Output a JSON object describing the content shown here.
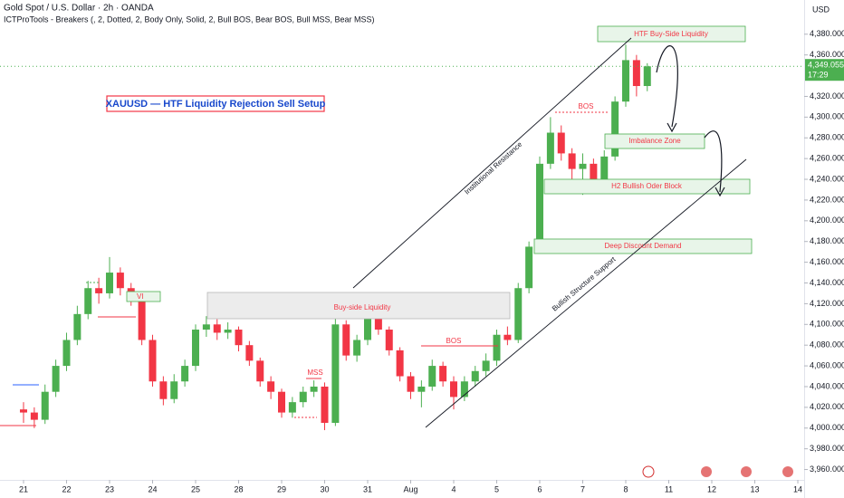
{
  "chart_data": {
    "type": "candlestick",
    "header": "Gold Spot / U.S. Dollar · 2h · OANDA",
    "indicator": "ICTProTools - Breakers (, 2, Dotted, 2, Body Only, Solid, 2, Bull BOS, Bear BOS, Bull MSS, Bear MSS)",
    "currency": "USD",
    "title": "XAUUSD — HTF Liquidity Rejection Sell Setup",
    "annotations": {
      "htf_buy_side": "HTF Buy-Side Liquidity",
      "imbalance": "Imbalance Zone",
      "order_block": "H2 Bullish Oder Block",
      "deep_discount": "Deep Discount Demand",
      "buy_side": "Buy-side Liquidity",
      "vi": "VI",
      "bos_1": "BOS",
      "bos_2": "BOS",
      "mss": "MSS",
      "resistance": "Institutional Resistance",
      "support": "Bullish Structure Support"
    },
    "last_price": {
      "value": 4349.055,
      "label": "4,349.055"
    },
    "countdown": "17:29",
    "up_color": "#4caf50",
    "down_color": "#f23645",
    "grid": false,
    "xlim": [
      -0.547,
      18.147
    ],
    "ylim": [
      3950,
      4413
    ],
    "xticks": [
      {
        "value": 0,
        "label": "21"
      },
      {
        "value": 1,
        "label": "22"
      },
      {
        "value": 2,
        "label": "23"
      },
      {
        "value": 3,
        "label": "24"
      },
      {
        "value": 4,
        "label": "25"
      },
      {
        "value": 5,
        "label": "28"
      },
      {
        "value": 6,
        "label": "29"
      },
      {
        "value": 7,
        "label": "30"
      },
      {
        "value": 8,
        "label": "31"
      },
      {
        "value": 9,
        "label": "Aug"
      },
      {
        "value": 10,
        "label": "4"
      },
      {
        "value": 11,
        "label": "5"
      },
      {
        "value": 12,
        "label": "6"
      },
      {
        "value": 13,
        "label": "7"
      },
      {
        "value": 14,
        "label": "8"
      },
      {
        "value": 15,
        "label": "11"
      },
      {
        "value": 16,
        "label": "12"
      },
      {
        "value": 17,
        "label": "13"
      },
      {
        "value": 18,
        "label": "14"
      }
    ],
    "yticks": [
      {
        "value": 3960,
        "label": "3,960.000"
      },
      {
        "value": 3980,
        "label": "3,980.000"
      },
      {
        "value": 4000,
        "label": "4,000.000"
      },
      {
        "value": 4020,
        "label": "4,020.000"
      },
      {
        "value": 4040,
        "label": "4,040.000"
      },
      {
        "value": 4060,
        "label": "4,060.000"
      },
      {
        "value": 4080,
        "label": "4,080.000"
      },
      {
        "value": 4100,
        "label": "4,100.000"
      },
      {
        "value": 4120,
        "label": "4,120.000"
      },
      {
        "value": 4140,
        "label": "4,140.000"
      },
      {
        "value": 4160,
        "label": "4,160.000"
      },
      {
        "value": 4180,
        "label": "4,180.000"
      },
      {
        "value": 4200,
        "label": "4,200.000"
      },
      {
        "value": 4220,
        "label": "4,220.000"
      },
      {
        "value": 4240,
        "label": "4,240.000"
      },
      {
        "value": 4260,
        "label": "4,260.000"
      },
      {
        "value": 4280,
        "label": "4,280.000"
      },
      {
        "value": 4300,
        "label": "4,300.000"
      },
      {
        "value": 4320,
        "label": "4,320.000"
      },
      {
        "value": 4360,
        "label": "4,360.000"
      },
      {
        "value": 4380,
        "label": "4,380.000"
      }
    ],
    "candles": {
      "x": [
        0,
        0.25,
        0.5,
        0.75,
        1,
        1.25,
        1.5,
        1.75,
        2,
        2.25,
        2.5,
        2.75,
        3,
        3.25,
        3.5,
        3.75,
        4,
        4.25,
        4.5,
        4.75,
        5,
        5.25,
        5.5,
        5.75,
        6,
        6.25,
        6.5,
        6.75,
        7,
        7.25,
        7.5,
        7.75,
        8,
        8.25,
        8.5,
        8.75,
        9,
        9.25,
        9.5,
        9.75,
        10,
        10.25,
        10.5,
        10.75,
        11,
        11.25,
        11.5,
        11.75,
        12,
        12.25,
        12.5,
        12.75,
        13,
        13.25,
        13.5,
        13.75,
        14,
        14.25,
        14.5
      ],
      "open": [
        4018,
        4015,
        4008,
        4035,
        4060,
        4085,
        4110,
        4135,
        4130,
        4150,
        4135,
        4125,
        4085,
        4045,
        4028,
        4045,
        4060,
        4095,
        4100,
        4092,
        4095,
        4080,
        4065,
        4045,
        4035,
        4015,
        4025,
        4035,
        4040,
        4005,
        4100,
        4070,
        4085,
        4108,
        4095,
        4075,
        4050,
        4035,
        4040,
        4060,
        4045,
        4030,
        4045,
        4055,
        4065,
        4090,
        4085,
        4135,
        4175,
        4255,
        4285,
        4265,
        4250,
        4255,
        4235,
        4262,
        4315,
        4355,
        4330
      ],
      "high": [
        4025,
        4020,
        4042,
        4066,
        4092,
        4118,
        4142,
        4145,
        4165,
        4155,
        4140,
        4128,
        4090,
        4050,
        4052,
        4066,
        4100,
        4108,
        4105,
        4102,
        4098,
        4084,
        4068,
        4050,
        4038,
        4030,
        4040,
        4046,
        4044,
        4106,
        4104,
        4090,
        4114,
        4112,
        4098,
        4078,
        4054,
        4046,
        4066,
        4064,
        4050,
        4050,
        4060,
        4072,
        4095,
        4098,
        4140,
        4180,
        4262,
        4300,
        4292,
        4270,
        4265,
        4260,
        4268,
        4320,
        4370,
        4360,
        4352
      ],
      "low": [
        4005,
        4000,
        4004,
        4030,
        4055,
        4080,
        4105,
        4120,
        4125,
        4128,
        4118,
        4080,
        4040,
        4022,
        4024,
        4040,
        4055,
        4088,
        4085,
        4086,
        4074,
        4060,
        4040,
        4028,
        4010,
        4010,
        4020,
        4030,
        3998,
        4002,
        4065,
        4064,
        4080,
        4090,
        4070,
        4045,
        4028,
        4020,
        4036,
        4040,
        4018,
        4026,
        4040,
        4050,
        4060,
        4080,
        4082,
        4130,
        4170,
        4250,
        4258,
        4240,
        4225,
        4228,
        4230,
        4258,
        4310,
        4320,
        4325
      ],
      "close": [
        4015,
        4008,
        4035,
        4060,
        4085,
        4110,
        4135,
        4130,
        4150,
        4135,
        4125,
        4085,
        4045,
        4028,
        4045,
        4060,
        4095,
        4100,
        4092,
        4095,
        4080,
        4065,
        4045,
        4035,
        4015,
        4025,
        4035,
        4040,
        4005,
        4100,
        4070,
        4085,
        4108,
        4095,
        4075,
        4050,
        4035,
        4040,
        4060,
        4045,
        4030,
        4045,
        4055,
        4065,
        4090,
        4085,
        4135,
        4175,
        4255,
        4285,
        4265,
        4250,
        4255,
        4235,
        4262,
        4315,
        4355,
        4330,
        4349
      ]
    }
  }
}
